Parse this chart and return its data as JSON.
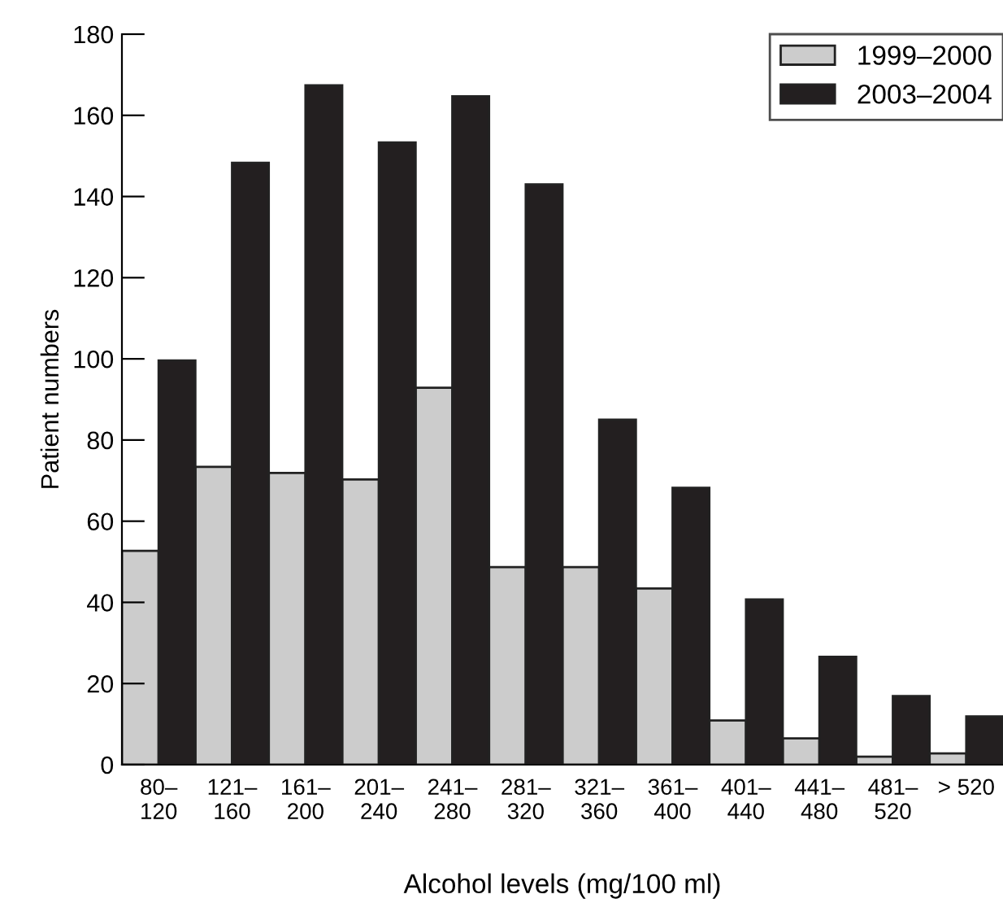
{
  "chart_data": {
    "type": "bar",
    "xlabel": "Alcohol levels (mg/100 ml)",
    "ylabel": "Patient numbers",
    "categories": [
      "80–\n120",
      "121–\n160",
      "161–\n200",
      "201–\n240",
      "241–\n280",
      "281–\n320",
      "321–\n360",
      "361–\n400",
      "401–\n440",
      "441–\n480",
      "481–\n520",
      "> 520"
    ],
    "series": [
      {
        "name": "1999–2000",
        "color": "#cccccc",
        "values": [
          52.7,
          73.4,
          71.9,
          70.3,
          92.9,
          48.7,
          48.7,
          43.4,
          10.9,
          6.5,
          2.0,
          2.8
        ]
      },
      {
        "name": "2003–2004",
        "color": "#231f20",
        "values": [
          99.6,
          148.3,
          167.4,
          153.3,
          164.7,
          143.0,
          85.0,
          68.2,
          40.7,
          26.6,
          16.9,
          11.9
        ]
      }
    ],
    "ylim": [
      0,
      180
    ],
    "yticks": [
      0,
      20,
      40,
      60,
      80,
      100,
      120,
      140,
      160,
      180
    ],
    "grid": false,
    "legend": "top right"
  }
}
